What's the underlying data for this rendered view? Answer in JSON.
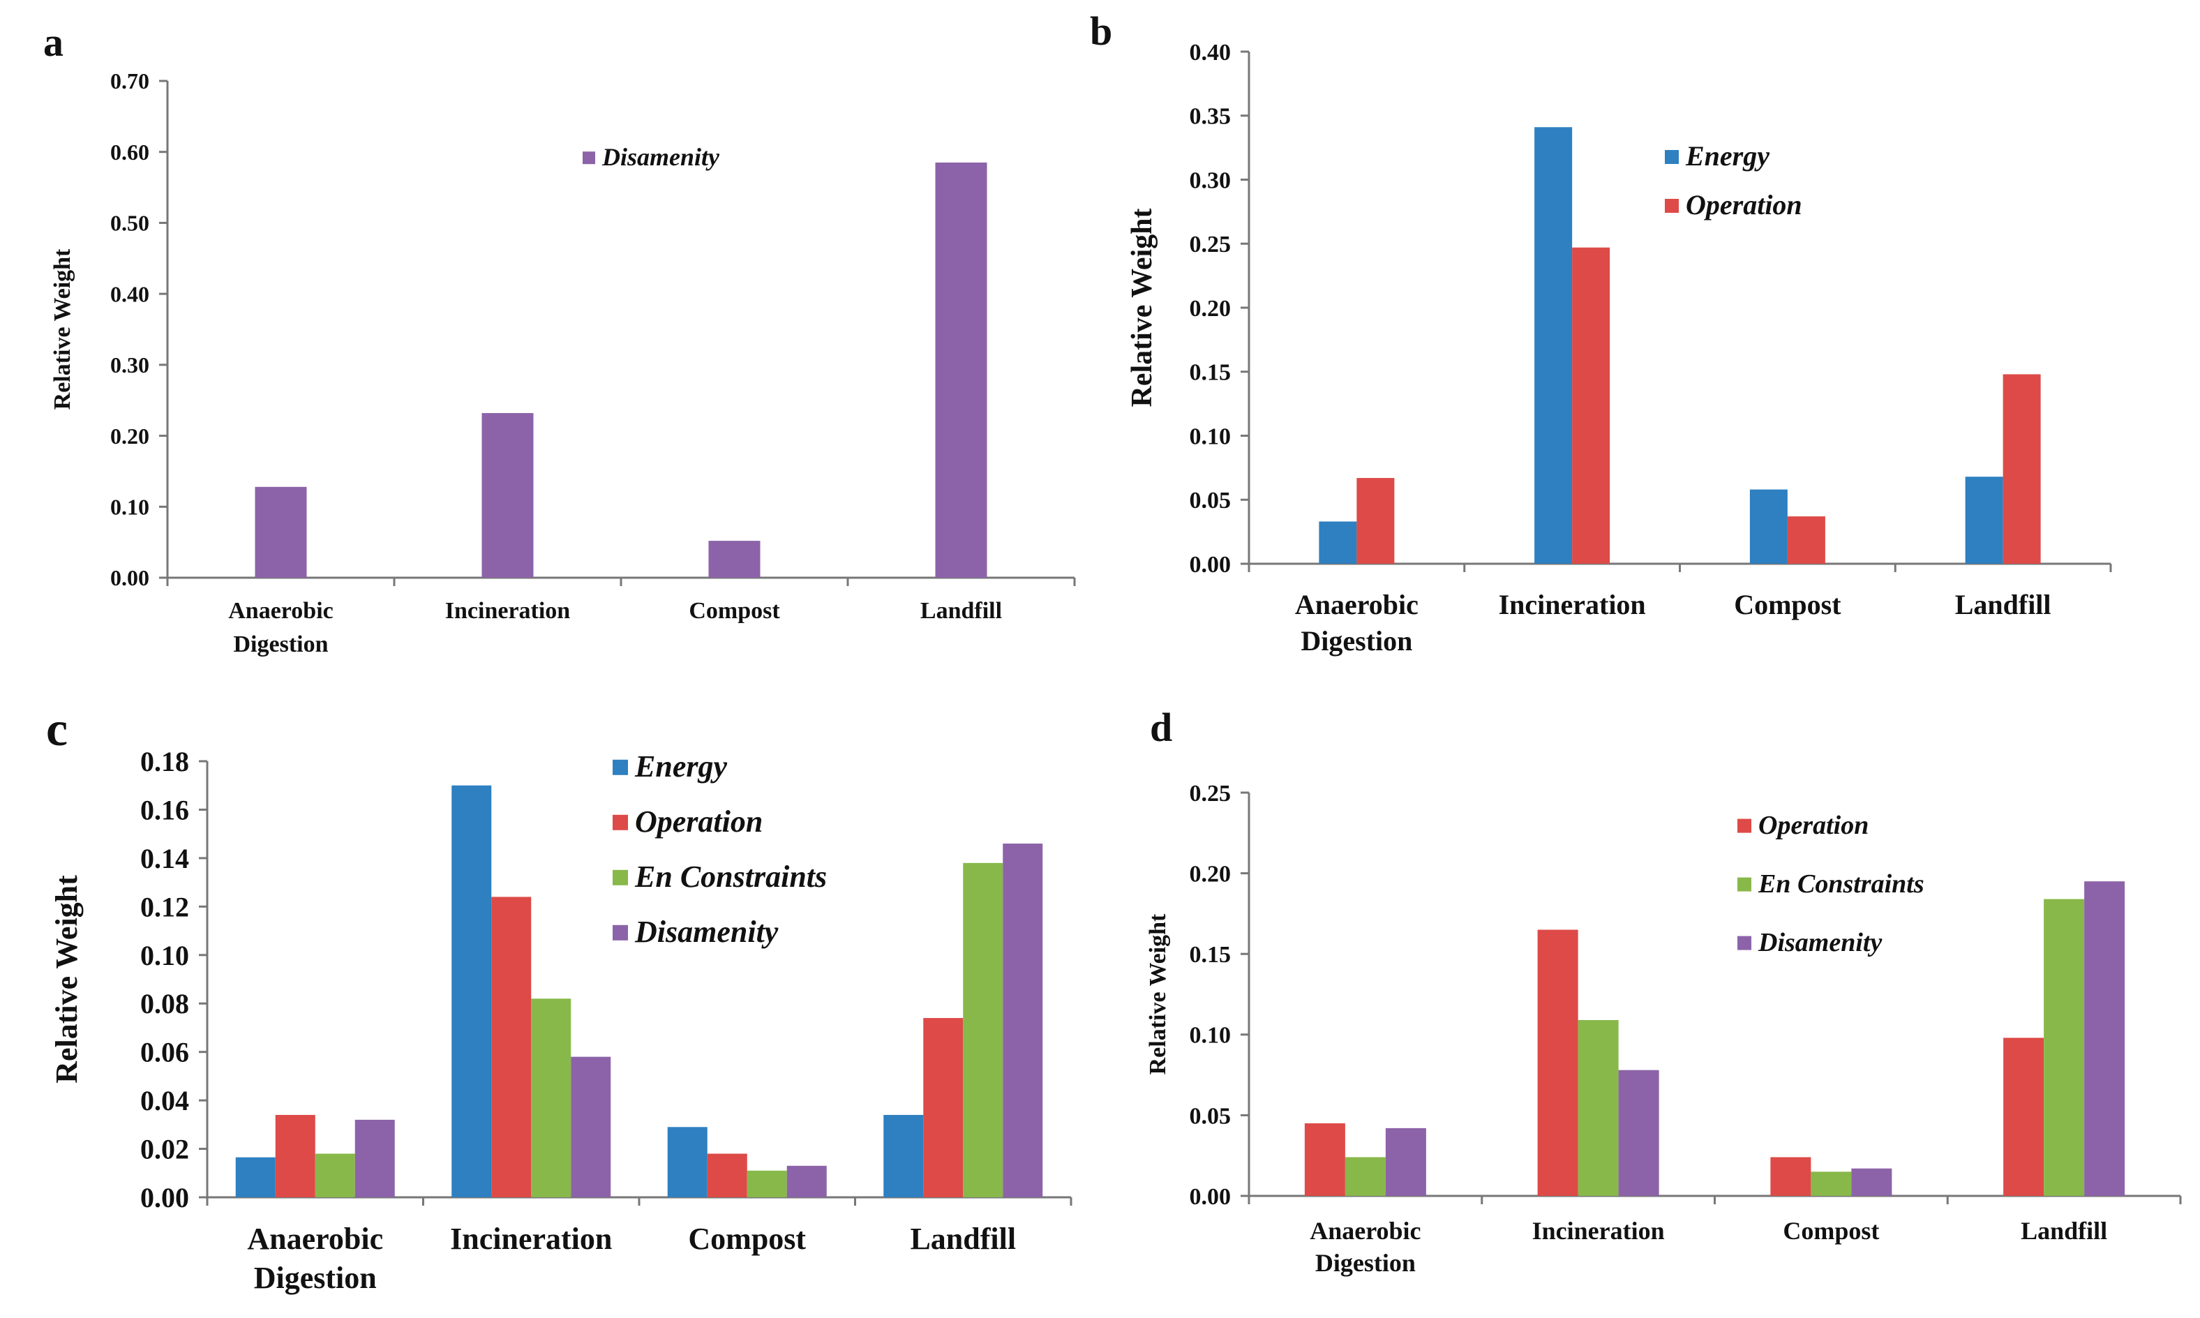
{
  "colors": {
    "Energy": "#2e80c0",
    "Operation": "#dd4a47",
    "En Constraints": "#88b84a",
    "Disamenity": "#8c63a8"
  },
  "chart_data": [
    {
      "panel": "a",
      "type": "bar",
      "ylabel": "Relative Weight",
      "ylim": [
        0,
        0.7
      ],
      "yticks": [
        "0.00",
        "0.10",
        "0.20",
        "0.30",
        "0.40",
        "0.50",
        "0.60",
        "0.70"
      ],
      "categories": [
        [
          "Anaerobic",
          "Digestion"
        ],
        [
          "Incineration"
        ],
        [
          "Compost"
        ],
        [
          "Landfill"
        ]
      ],
      "legend_position": "top-center",
      "series": [
        {
          "name": "Disamenity",
          "values": [
            0.128,
            0.232,
            0.052,
            0.585
          ]
        }
      ]
    },
    {
      "panel": "b",
      "type": "bar",
      "ylabel": "Relative Weight",
      "ylim": [
        0,
        0.4
      ],
      "yticks": [
        "0.00",
        "0.05",
        "0.10",
        "0.15",
        "0.20",
        "0.25",
        "0.30",
        "0.35",
        "0.40"
      ],
      "categories": [
        [
          "Anaerobic",
          "Digestion"
        ],
        [
          "Incineration"
        ],
        [
          "Compost"
        ],
        [
          "Landfill"
        ]
      ],
      "legend_position": "top-center",
      "series": [
        {
          "name": "Energy",
          "values": [
            0.033,
            0.341,
            0.058,
            0.068
          ]
        },
        {
          "name": "Operation",
          "values": [
            0.067,
            0.247,
            0.037,
            0.148
          ]
        }
      ]
    },
    {
      "panel": "c",
      "type": "bar",
      "ylabel": "Relative Weight",
      "ylim": [
        0,
        0.18
      ],
      "yticks": [
        "0.00",
        "0.02",
        "0.04",
        "0.06",
        "0.08",
        "0.10",
        "0.12",
        "0.14",
        "0.16",
        "0.18"
      ],
      "categories": [
        [
          "Anaerobic",
          "Digestion"
        ],
        [
          "Incineration"
        ],
        [
          "Compost"
        ],
        [
          "Landfill"
        ]
      ],
      "legend_position": "top-center",
      "series": [
        {
          "name": "Energy",
          "values": [
            0.0165,
            0.17,
            0.029,
            0.034
          ]
        },
        {
          "name": "Operation",
          "values": [
            0.034,
            0.124,
            0.018,
            0.074
          ]
        },
        {
          "name": "En Constraints",
          "values": [
            0.018,
            0.082,
            0.011,
            0.138
          ]
        },
        {
          "name": "Disamenity",
          "values": [
            0.032,
            0.058,
            0.013,
            0.146
          ]
        }
      ]
    },
    {
      "panel": "d",
      "type": "bar",
      "ylabel": "Relative Weight",
      "ylim": [
        0,
        0.25
      ],
      "yticks": [
        "0.00",
        "0.05",
        "0.10",
        "0.15",
        "0.20",
        "0.25"
      ],
      "categories": [
        [
          "Anaerobic",
          "Digestion"
        ],
        [
          "Incineration"
        ],
        [
          "Compost"
        ],
        [
          "Landfill"
        ]
      ],
      "legend_position": "top-center",
      "series": [
        {
          "name": "Operation",
          "values": [
            0.045,
            0.165,
            0.024,
            0.098
          ]
        },
        {
          "name": "En Constraints",
          "values": [
            0.024,
            0.109,
            0.015,
            0.184
          ]
        },
        {
          "name": "Disamenity",
          "values": [
            0.042,
            0.078,
            0.017,
            0.195
          ]
        }
      ]
    }
  ]
}
